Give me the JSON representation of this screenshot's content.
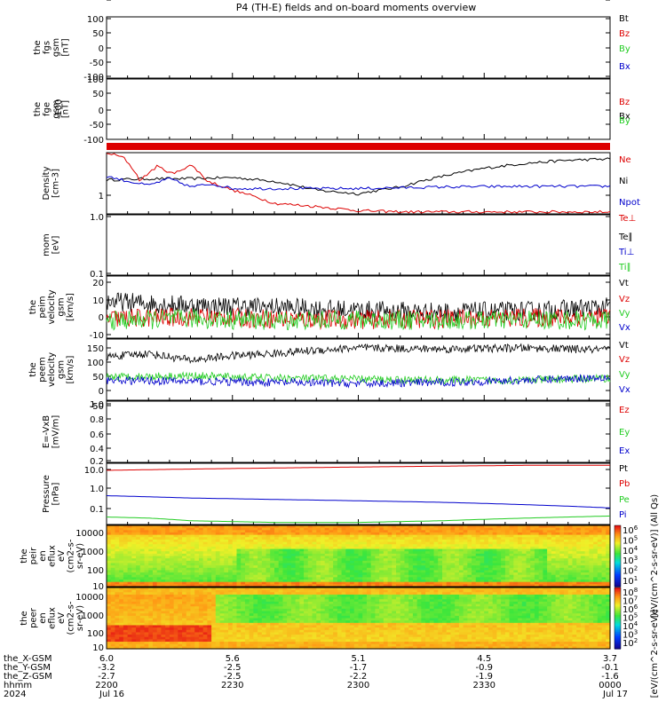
{
  "title": "P4 (TH-E) fields and on-board moments overview",
  "colors": {
    "black": "#000000",
    "red": "#dd0000",
    "green": "#22cc22",
    "blue": "#0000cc"
  },
  "chart_data": [
    {
      "type": "line",
      "ylabel": [
        "the",
        "fgs",
        "gsm",
        "[nT]"
      ],
      "yticks": [
        "100",
        "50",
        "0",
        "-50",
        "-100"
      ],
      "ylim": [
        -100,
        100
      ],
      "legend": [
        {
          "name": "Bt",
          "color": "#000000"
        },
        {
          "name": "Bz",
          "color": "#dd0000"
        },
        {
          "name": "By",
          "color": "#22cc22"
        },
        {
          "name": "Bx",
          "color": "#0000cc"
        }
      ],
      "series": []
    },
    {
      "type": "line",
      "ylabel": [
        "the",
        "fge",
        "gsm",
        "[nT]"
      ],
      "ylabel_overlap": "-100",
      "yticks": [
        "100",
        "50",
        "0",
        "-50",
        "-100"
      ],
      "ylim": [
        -125,
        100
      ],
      "legend": [
        {
          "name": "Bz",
          "color": "#dd0000"
        },
        {
          "name": "Bx",
          "color": "#000000"
        },
        {
          "name": "By",
          "color": "#22cc22"
        }
      ],
      "series": []
    },
    {
      "type": "line",
      "ylabel": [
        "Density",
        "[cm-3]"
      ],
      "yticks": [
        "1"
      ],
      "ylim": [
        0.5,
        3
      ],
      "legend": [
        {
          "name": "Ne",
          "color": "#dd0000"
        },
        {
          "name": "Ni",
          "color": "#000000"
        },
        {
          "name": "Npot",
          "color": "#0000cc"
        }
      ],
      "series": [
        {
          "name": "Ni",
          "x": [
            0,
            10,
            20,
            30,
            40,
            50,
            60,
            70,
            80,
            90,
            100,
            110,
            120
          ],
          "y": [
            1.35,
            1.4,
            1.4,
            1.45,
            1.3,
            1.0,
            0.9,
            1.1,
            1.5,
            1.9,
            2.2,
            2.4,
            2.5
          ]
        },
        {
          "name": "Ne",
          "x": [
            0,
            4,
            8,
            12,
            16,
            20,
            22,
            24,
            30,
            40,
            50,
            60,
            70,
            90,
            120
          ],
          "y": [
            3,
            2.6,
            1.3,
            2.0,
            1.6,
            2.1,
            1.7,
            1.3,
            1.0,
            0.68,
            0.62,
            0.55,
            0.53,
            0.53,
            0.53
          ]
        },
        {
          "name": "Npot",
          "x": [
            0,
            5,
            10,
            15,
            20,
            25,
            30,
            40,
            60,
            80,
            100,
            120
          ],
          "y": [
            1.5,
            1.3,
            1.15,
            1.4,
            1.1,
            1.2,
            1.05,
            1.05,
            1.05,
            1.1,
            1.12,
            1.12
          ]
        }
      ]
    },
    {
      "type": "line",
      "ylabel": [
        "mom",
        "[eV]"
      ],
      "yticks": [
        "1.0",
        "0.1"
      ],
      "ylim": [
        0.1,
        1.0
      ],
      "legend": [
        {
          "name": "Te⊥",
          "color": "#dd0000"
        },
        {
          "name": "Te∥",
          "color": "#000000"
        },
        {
          "name": "Ti⊥",
          "color": "#0000cc"
        },
        {
          "name": "Ti∥",
          "color": "#22cc22"
        }
      ],
      "series": []
    },
    {
      "type": "line",
      "ylabel": [
        "the",
        "peim",
        "velocity",
        "gsm",
        "[km/s]"
      ],
      "yticks": [
        "20",
        "10",
        "0",
        "-10"
      ],
      "ylim": [
        -10,
        22
      ],
      "legend": [
        {
          "name": "Vt",
          "color": "#000000"
        },
        {
          "name": "Vz",
          "color": "#dd0000"
        },
        {
          "name": "Vy",
          "color": "#22cc22"
        },
        {
          "name": "Vx",
          "color": "#0000cc"
        }
      ],
      "series": [
        {
          "name": "Vt",
          "x": [
            0,
            20,
            40,
            60,
            80,
            100,
            120
          ],
          "y": [
            9,
            7,
            6,
            4.5,
            3.5,
            4,
            6
          ]
        },
        {
          "name": "Vz",
          "x": [
            0,
            20,
            40,
            60,
            80,
            100,
            120
          ],
          "y": [
            0,
            1,
            0,
            -0.5,
            0,
            0.5,
            1
          ]
        },
        {
          "name": "Vy",
          "x": [
            0,
            20,
            40,
            60,
            80,
            100,
            120
          ],
          "y": [
            -1,
            0,
            -1,
            -0.5,
            -1,
            -0.5,
            -1
          ]
        }
      ]
    },
    {
      "type": "line",
      "ylabel": [
        "the",
        "peem",
        "velocity",
        "gsm",
        "[km/s]"
      ],
      "yticks": [
        "150",
        "100",
        "50",
        "0",
        "-50",
        "-100"
      ],
      "ylim": [
        -100,
        175
      ],
      "legend": [
        {
          "name": "Vt",
          "color": "#000000"
        },
        {
          "name": "Vz",
          "color": "#dd0000"
        },
        {
          "name": "Vy",
          "color": "#22cc22"
        },
        {
          "name": "Vx",
          "color": "#0000cc"
        }
      ],
      "series": [
        {
          "name": "Vt",
          "x": [
            0,
            10,
            20,
            30,
            40,
            50,
            60,
            80,
            100,
            120
          ],
          "y": [
            95,
            110,
            80,
            100,
            110,
            125,
            135,
            130,
            135,
            125
          ]
        },
        {
          "name": "Vy",
          "x": [
            0,
            20,
            40,
            60,
            80,
            100,
            120
          ],
          "y": [
            5,
            10,
            0,
            -5,
            -10,
            -10,
            0
          ]
        },
        {
          "name": "Vx",
          "x": [
            0,
            20,
            40,
            60,
            80,
            100,
            120
          ],
          "y": [
            -10,
            -15,
            -20,
            -25,
            -20,
            -10,
            5
          ]
        }
      ]
    },
    {
      "type": "line",
      "ylabel": [
        "E=-VxB",
        "[mV/m]"
      ],
      "yticks": [
        "1.0",
        "0.8",
        "0.6",
        "0.4",
        "0.2",
        "0.0"
      ],
      "ylim": [
        0,
        1
      ],
      "legend": [
        {
          "name": "Ez",
          "color": "#dd0000"
        },
        {
          "name": "Ey",
          "color": "#22cc22"
        },
        {
          "name": "Ex",
          "color": "#0000cc"
        }
      ],
      "series": []
    },
    {
      "type": "line",
      "ylabel": [
        "Pressure",
        "[nPa]"
      ],
      "yticks": [
        "10.0",
        "1.0",
        "0.1"
      ],
      "ylim": [
        0.02,
        15
      ],
      "legend": [
        {
          "name": "Pt",
          "color": "#000000"
        },
        {
          "name": "Pb",
          "color": "#dd0000"
        },
        {
          "name": "Pe",
          "color": "#22cc22"
        },
        {
          "name": "Pi",
          "color": "#0000cc"
        }
      ],
      "series": [
        {
          "name": "Pb",
          "x": [
            0,
            20,
            40,
            60,
            80,
            100,
            120
          ],
          "y": [
            7,
            8,
            9,
            10,
            11,
            12,
            12
          ]
        },
        {
          "name": "Pi",
          "x": [
            0,
            20,
            40,
            60,
            80,
            100,
            120
          ],
          "y": [
            0.45,
            0.35,
            0.3,
            0.26,
            0.22,
            0.17,
            0.12
          ]
        },
        {
          "name": "Pe",
          "x": [
            0,
            10,
            20,
            40,
            60,
            80,
            100,
            120
          ],
          "y": [
            0.045,
            0.04,
            0.03,
            0.025,
            0.025,
            0.03,
            0.04,
            0.05
          ]
        }
      ]
    },
    {
      "type": "heatmap",
      "ylabel": [
        "the",
        "peir",
        "en",
        "eflux",
        "eV",
        "(cm2-s-",
        "sr-eV)"
      ],
      "yticks": [
        "10000",
        "1000",
        "100",
        "10"
      ],
      "ylim": [
        5,
        25000
      ],
      "colorbar_label": "[eV/(cm^2-s-sr-eV)] (All Qs)",
      "colorbar_ticks": [
        "10^6",
        "10^5",
        "10^4",
        "10^3",
        "10^2",
        "10^1"
      ]
    },
    {
      "type": "heatmap",
      "ylabel": [
        "the",
        "peer",
        "en",
        "eflux",
        "eV",
        "(cm2-s-",
        "sr-eV)"
      ],
      "yticks": [
        "10000",
        "1000",
        "100",
        "10"
      ],
      "ylim": [
        5,
        25000
      ],
      "colorbar_label": "[eV/(cm^2-s-sr-eV)]",
      "colorbar_ticks": [
        "10^8",
        "10^7",
        "10^6",
        "10^5",
        "10^4",
        "10^3",
        "10^2"
      ]
    }
  ],
  "xaxis": {
    "row_labels": [
      "the_X-GSM",
      "the_Y-GSM",
      "the_Z-GSM",
      "hhmm",
      "2024"
    ],
    "ticks": [
      {
        "x": 0,
        "vals": [
          "6.0",
          "-3.2",
          "-2.7",
          "2200",
          "Jul 16"
        ]
      },
      {
        "x": 30,
        "vals": [
          "5.6",
          "-2.5",
          "-2.5",
          "2230",
          ""
        ]
      },
      {
        "x": 60,
        "vals": [
          "5.1",
          "-1.7",
          "-2.2",
          "2300",
          ""
        ]
      },
      {
        "x": 90,
        "vals": [
          "4.5",
          "-0.9",
          "-1.9",
          "2330",
          ""
        ]
      },
      {
        "x": 120,
        "vals": [
          "3.7",
          "-0.1",
          "-1.6",
          "0000",
          "Jul 17"
        ]
      }
    ]
  }
}
